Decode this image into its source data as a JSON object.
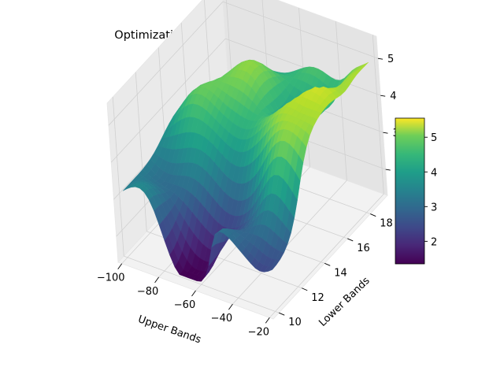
{
  "chart_data": {
    "type": "surface",
    "title": "Optimization Universe of Sharpe: usdchf",
    "xlabel": "Upper Bands",
    "ylabel": "Lower Bands",
    "zlabel": "",
    "x_ticks": [
      -100,
      -80,
      -60,
      -40,
      -20
    ],
    "y_ticks": [
      10,
      12,
      14,
      16,
      18
    ],
    "z_ticks": [
      2,
      3,
      4,
      5
    ],
    "xlim": [
      -102,
      -18
    ],
    "ylim": [
      9.5,
      19.5
    ],
    "zlim": [
      1.3,
      5.6
    ],
    "colormap": "viridis",
    "colorbar_ticks": [
      2,
      3,
      4,
      5
    ],
    "colorbar_range": [
      1.35,
      5.55
    ],
    "grid": true,
    "surface_samples": [
      {
        "x": -100,
        "y": 10,
        "z": 3.1
      },
      {
        "x": -62,
        "y": 10,
        "z": 1.4
      },
      {
        "x": -45,
        "y": 10,
        "z": 2.7
      },
      {
        "x": -20,
        "y": 10,
        "z": 2.5
      },
      {
        "x": -100,
        "y": 19,
        "z": 3.0
      },
      {
        "x": -75,
        "y": 16,
        "z": 4.6
      },
      {
        "x": -40,
        "y": 17,
        "z": 3.8
      },
      {
        "x": -30,
        "y": 15,
        "z": 5.3
      },
      {
        "x": -20,
        "y": 19,
        "z": 5.1
      }
    ]
  }
}
